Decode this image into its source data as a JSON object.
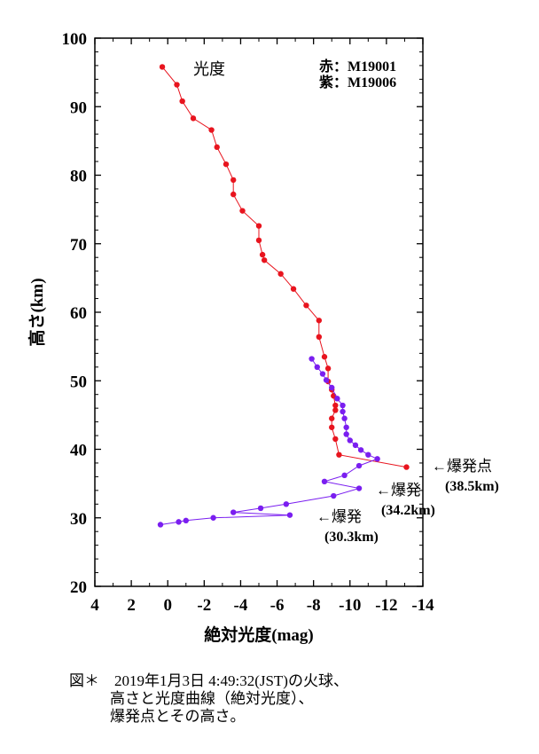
{
  "chart_data": {
    "type": "line",
    "title": "光度",
    "xlabel": "絶対光度(mag)",
    "ylabel": "高さ(km)",
    "xlim": [
      4,
      -14
    ],
    "ylim": [
      20,
      100
    ],
    "xticks": [
      4,
      2,
      0,
      -2,
      -4,
      -6,
      -8,
      -10,
      -12,
      -14
    ],
    "yticks": [
      20,
      30,
      40,
      50,
      60,
      70,
      80,
      90,
      100
    ],
    "grid": false,
    "legend_placement": "top-right",
    "legend": [
      {
        "label": "赤：M19001"
      },
      {
        "label": "紫：M19006"
      }
    ],
    "series": [
      {
        "name": "M19001",
        "color": "#e8141e",
        "points": [
          [
            0.3,
            95.8
          ],
          [
            -0.5,
            93.2
          ],
          [
            -0.8,
            90.8
          ],
          [
            -1.4,
            88.3
          ],
          [
            -2.4,
            86.6
          ],
          [
            -2.7,
            84.1
          ],
          [
            -3.2,
            81.6
          ],
          [
            -3.6,
            79.3
          ],
          [
            -3.6,
            77.2
          ],
          [
            -4.1,
            74.8
          ],
          [
            -5.0,
            72.6
          ],
          [
            -5.0,
            70.5
          ],
          [
            -5.2,
            68.4
          ],
          [
            -5.3,
            67.6
          ],
          [
            -6.2,
            65.6
          ],
          [
            -6.9,
            63.4
          ],
          [
            -7.6,
            61.0
          ],
          [
            -8.3,
            58.8
          ],
          [
            -8.3,
            56.4
          ],
          [
            -8.6,
            53.5
          ],
          [
            -8.8,
            51.8
          ],
          [
            -8.8,
            49.9
          ],
          [
            -9.0,
            48.7
          ],
          [
            -9.1,
            47.8
          ],
          [
            -9.2,
            46.4
          ],
          [
            -9.2,
            45.7
          ],
          [
            -9.0,
            44.5
          ],
          [
            -9.0,
            43.2
          ],
          [
            -9.2,
            41.5
          ],
          [
            -9.4,
            39.2
          ],
          [
            -13.1,
            37.4
          ]
        ]
      },
      {
        "name": "M19006",
        "color": "#7a1ef0",
        "points": [
          [
            -7.9,
            53.2
          ],
          [
            -8.2,
            52.0
          ],
          [
            -8.5,
            51.0
          ],
          [
            -8.7,
            50.1
          ],
          [
            -9.0,
            49.0
          ],
          [
            -9.3,
            47.4
          ],
          [
            -9.6,
            46.4
          ],
          [
            -9.6,
            45.5
          ],
          [
            -9.7,
            44.5
          ],
          [
            -9.8,
            43.2
          ],
          [
            -9.8,
            42.2
          ],
          [
            -10.0,
            41.3
          ],
          [
            -10.3,
            40.6
          ],
          [
            -10.6,
            39.9
          ],
          [
            -11.0,
            39.2
          ],
          [
            -11.5,
            38.6
          ],
          [
            -10.5,
            37.6
          ],
          [
            -9.7,
            36.2
          ],
          [
            -8.6,
            35.3
          ],
          [
            -10.5,
            34.3
          ],
          [
            -9.1,
            33.2
          ],
          [
            -6.5,
            32.0
          ],
          [
            -5.1,
            31.4
          ],
          [
            -3.6,
            30.8
          ],
          [
            -6.7,
            30.4
          ],
          [
            -2.5,
            30.0
          ],
          [
            -1.0,
            29.6
          ],
          [
            -0.6,
            29.4
          ],
          [
            0.4,
            29.0
          ]
        ]
      }
    ],
    "annotations": [
      {
        "text": "←爆発点",
        "value": "(38.5km)"
      },
      {
        "text": "←爆発",
        "value": "(34.2km)"
      },
      {
        "text": "←爆発",
        "value": "(30.3km)"
      }
    ]
  },
  "caption": {
    "line1": "図＊　2019年1月3日 4:49:32(JST)の火球、",
    "line2": "高さと光度曲線（絶対光度）、",
    "line3": "爆発点とその高さ。"
  }
}
